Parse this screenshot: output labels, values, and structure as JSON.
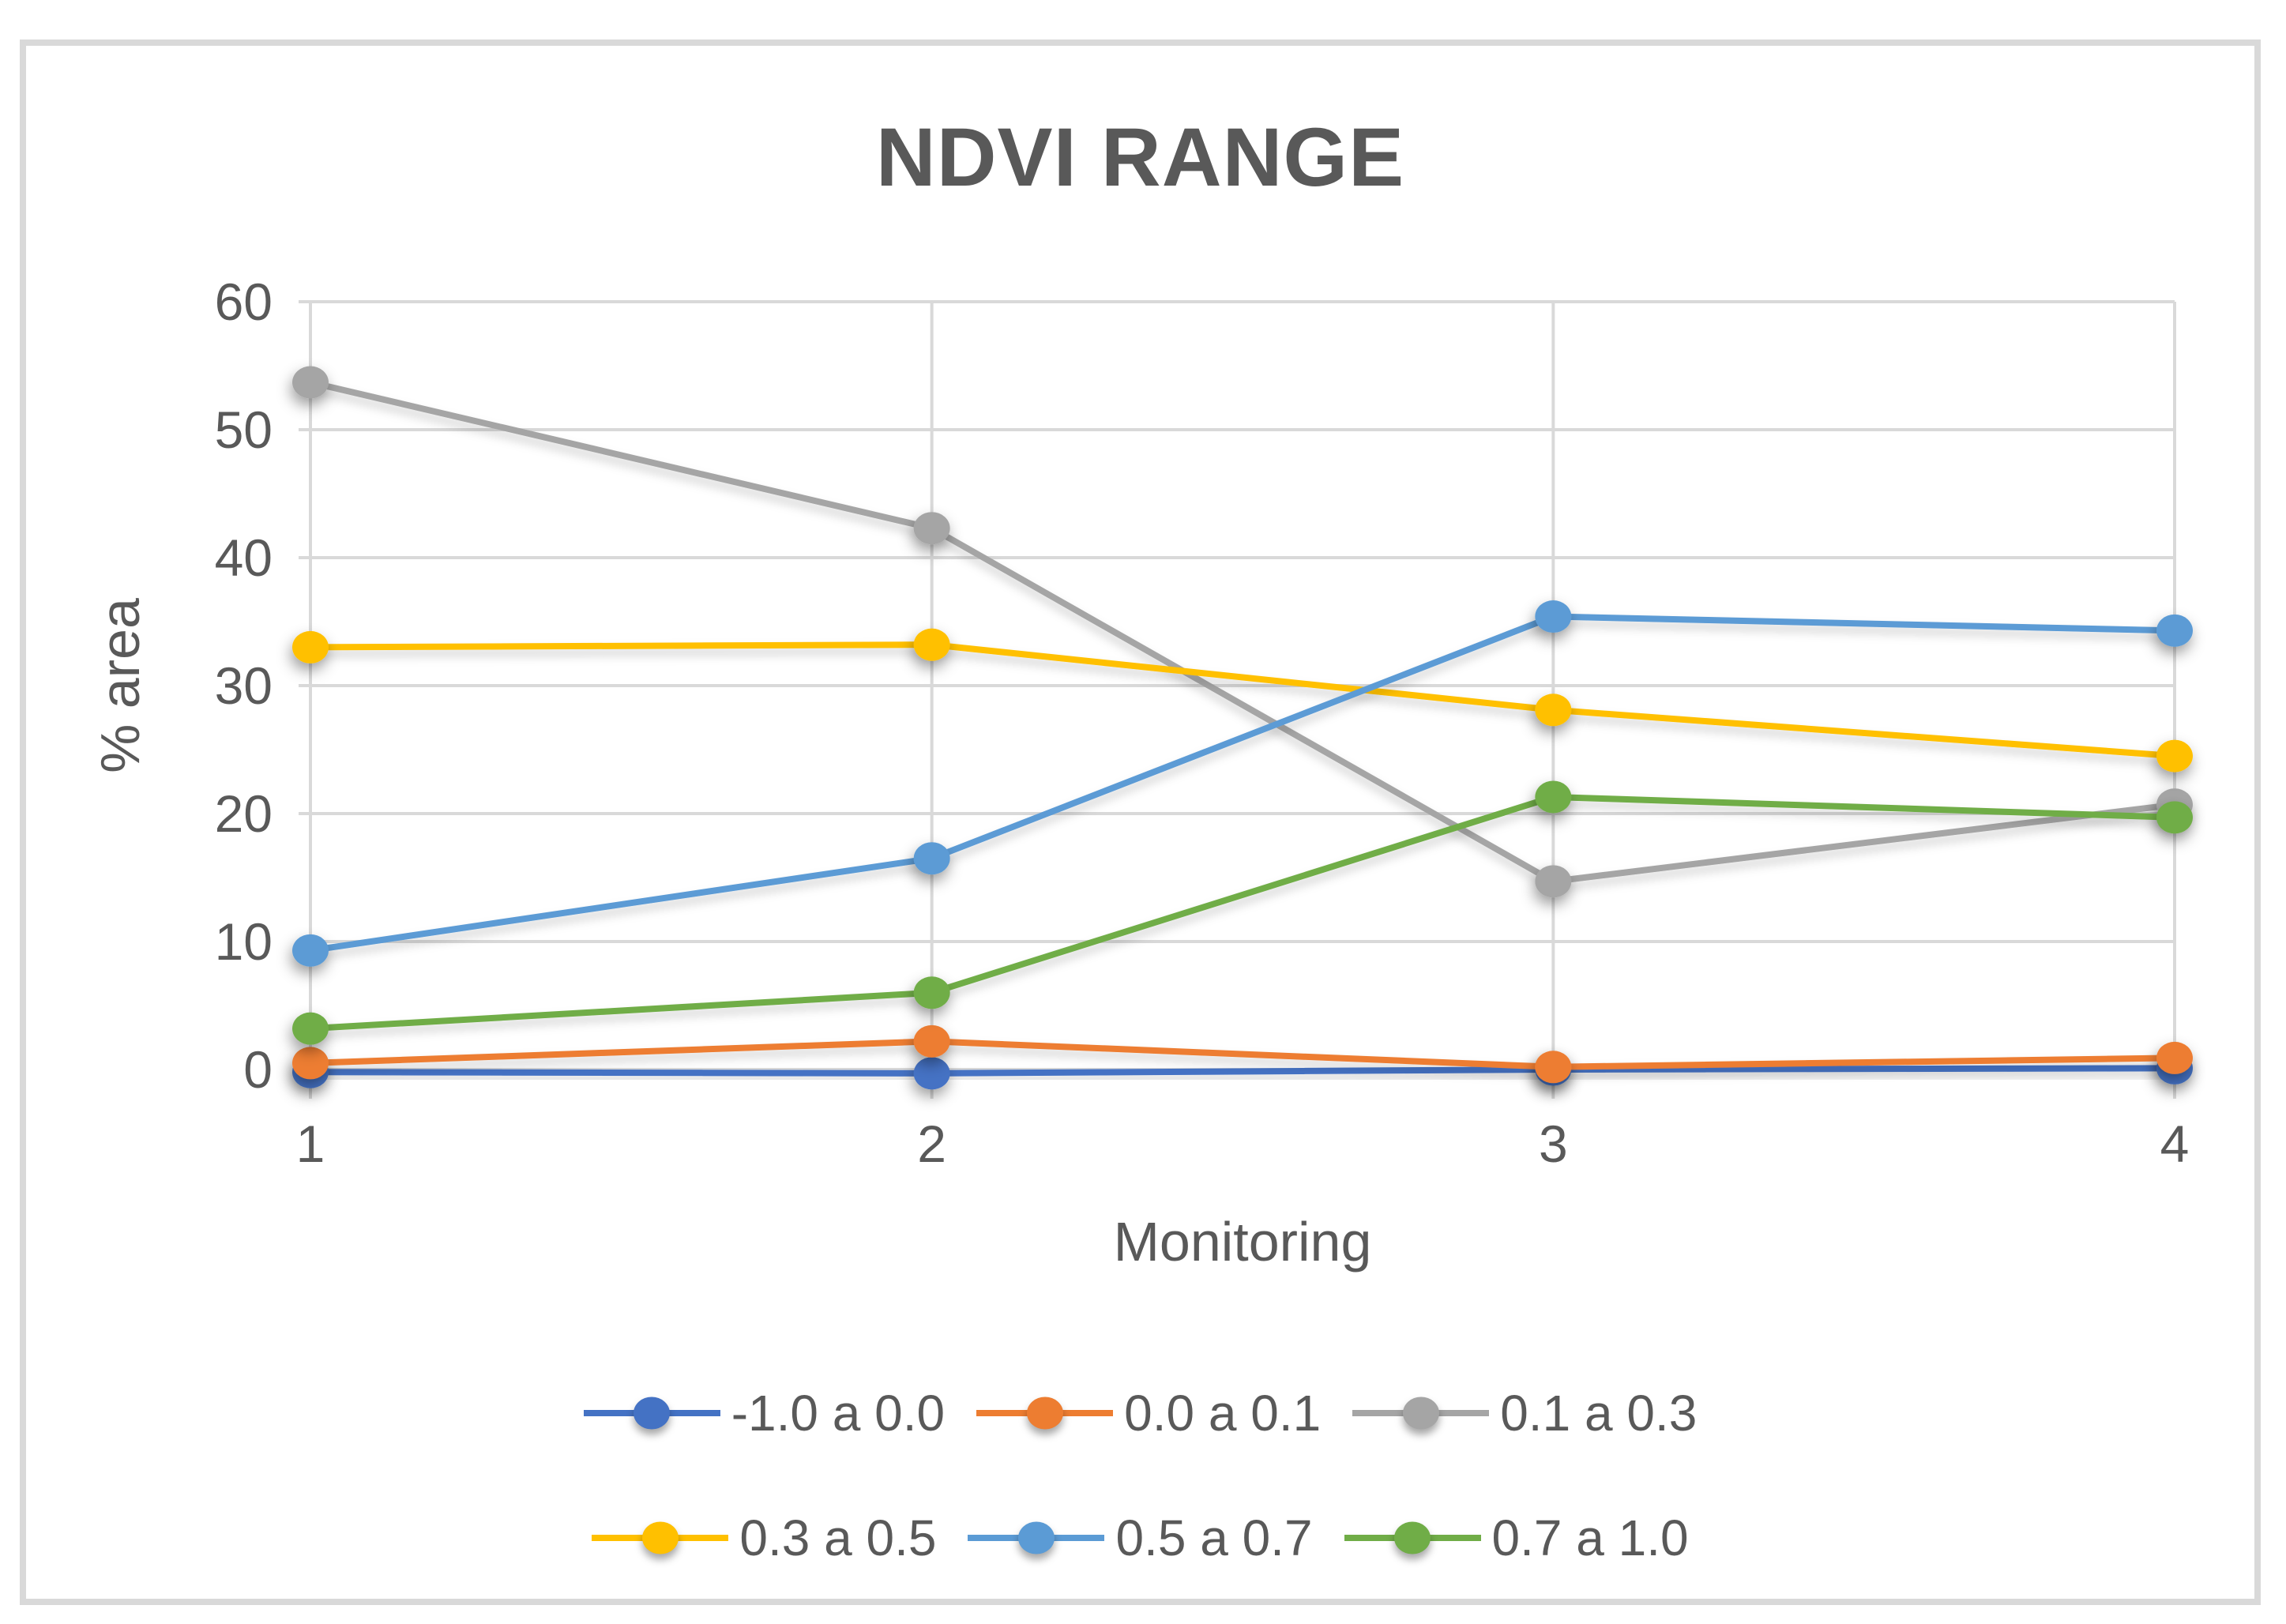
{
  "title": "NDVI RANGE",
  "colors": {
    "text": "#595959",
    "gridline": "#D9D9D9",
    "frame_border": "#D9D9D9",
    "background": "#FFFFFF",
    "series_blue": "#4472C4",
    "series_orange": "#ED7D31",
    "series_gray": "#A5A5A5",
    "series_gold": "#FFC000",
    "series_lightblue": "#5B9BD5",
    "series_green": "#70AD47"
  },
  "chart_data": {
    "type": "line",
    "title": "NDVI RANGE",
    "xlabel": "Monitoring",
    "ylabel": "% area",
    "categories": [
      1,
      2,
      3,
      4
    ],
    "ylim": [
      0,
      60
    ],
    "y_ticks": [
      0,
      10,
      20,
      30,
      40,
      50,
      60
    ],
    "grid": true,
    "legend_position": "bottom",
    "legend_rows": [
      [
        0,
        1,
        2
      ],
      [
        3,
        4,
        5
      ]
    ],
    "series": [
      {
        "name": "-1.0 a 0.0",
        "color": "#4472C4",
        "values": [
          -0.2,
          -0.3,
          0.0,
          0.1
        ]
      },
      {
        "name": "0.0 a 0.1",
        "color": "#ED7D31",
        "values": [
          0.5,
          2.2,
          0.2,
          0.9
        ]
      },
      {
        "name": "0.1 a 0.3",
        "color": "#A5A5A5",
        "values": [
          53.7,
          42.3,
          14.7,
          20.7
        ]
      },
      {
        "name": "0.3 a 0.5",
        "color": "#FFC000",
        "values": [
          33.0,
          33.2,
          28.1,
          24.5
        ]
      },
      {
        "name": "0.5 a 0.7",
        "color": "#5B9BD5",
        "values": [
          9.3,
          16.5,
          35.4,
          34.3
        ]
      },
      {
        "name": "0.7 a 1.0",
        "color": "#70AD47",
        "values": [
          3.2,
          6.0,
          21.3,
          19.7
        ]
      }
    ]
  }
}
